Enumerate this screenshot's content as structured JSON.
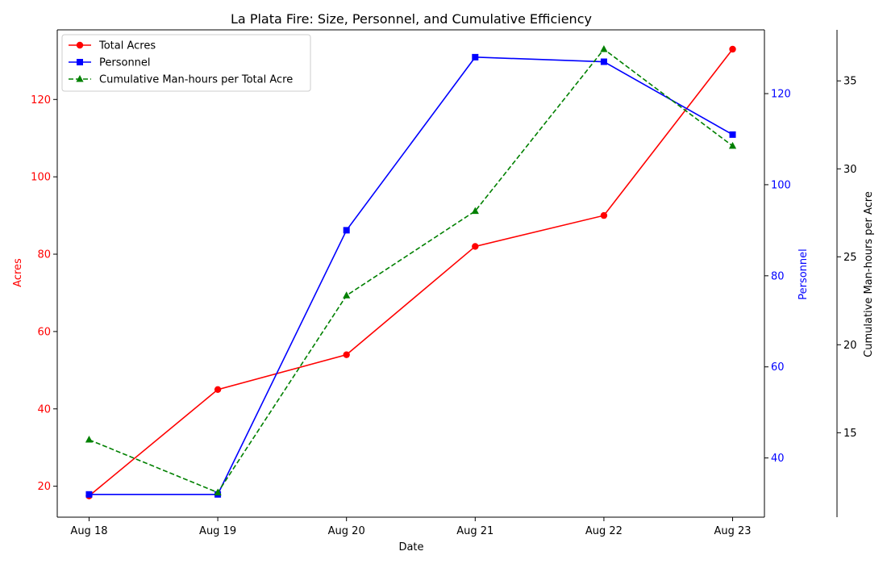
{
  "chart_data": {
    "type": "line",
    "title": "La Plata Fire: Size, Personnel, and Cumulative Efficiency",
    "xlabel": "Date",
    "categories": [
      "Aug 18",
      "Aug 19",
      "Aug 20",
      "Aug 21",
      "Aug 22",
      "Aug 23"
    ],
    "axes": {
      "acres": {
        "label": "Acres",
        "ylim": [
          12,
          138
        ],
        "ticks": [
          20,
          40,
          60,
          80,
          100,
          120
        ],
        "color": "#ff0000"
      },
      "personnel": {
        "label": "Personnel",
        "ylim": [
          27,
          134
        ],
        "ticks": [
          40,
          60,
          80,
          100,
          120
        ],
        "color": "#0000ff"
      },
      "manhours": {
        "label": "Cumulative Man-hours per Acre",
        "ylim": [
          10.2,
          37.9
        ],
        "ticks": [
          15,
          20,
          25,
          30,
          35
        ],
        "color": "#000000"
      }
    },
    "series": [
      {
        "name": "Total Acres",
        "axis": "acres",
        "color": "#ff0000",
        "marker": "circle",
        "dash": "solid",
        "values": [
          17.5,
          45,
          54,
          82,
          90,
          133
        ]
      },
      {
        "name": "Personnel",
        "axis": "personnel",
        "color": "#0000ff",
        "marker": "square",
        "dash": "solid",
        "values": [
          32,
          32,
          90,
          128,
          127,
          111
        ]
      },
      {
        "name": "Cumulative Man-hours per Total Acre",
        "axis": "manhours",
        "color": "#008000",
        "marker": "triangle",
        "dash": "dashed",
        "values": [
          14.6,
          11.6,
          22.8,
          27.6,
          36.8,
          31.3
        ]
      }
    ],
    "legend_position": "top-left",
    "grid": false
  }
}
